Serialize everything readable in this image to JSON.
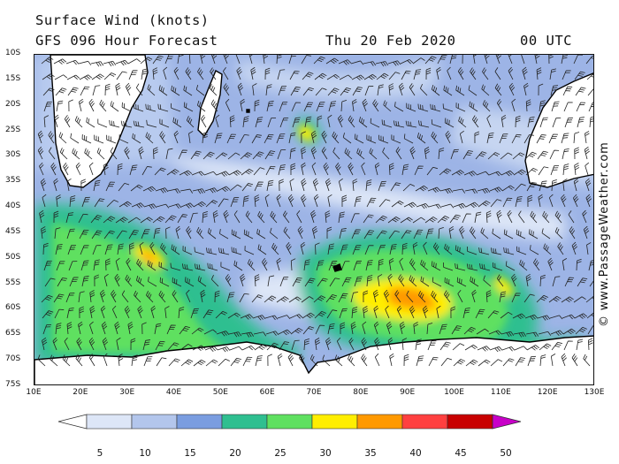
{
  "header": {
    "title": "Surface Wind (knots)",
    "forecast": "GFS 096 Hour Forecast",
    "valid_date": "Thu 20 Feb 2020",
    "valid_time": "00 UTC"
  },
  "map": {
    "lat_ticks": [
      "10S",
      "15S",
      "20S",
      "25S",
      "30S",
      "35S",
      "40S",
      "45S",
      "50S",
      "55S",
      "60S",
      "65S",
      "70S",
      "75S"
    ],
    "lon_ticks": [
      "10E",
      "20E",
      "30E",
      "40E",
      "50E",
      "60E",
      "70E",
      "80E",
      "90E",
      "100E",
      "110E",
      "120E",
      "130E"
    ],
    "land_color": "#ffffff",
    "coast_color": "#000000"
  },
  "legend": {
    "unit": "knots",
    "labels": [
      "5",
      "10",
      "15",
      "20",
      "25",
      "30",
      "35",
      "40",
      "45",
      "50"
    ],
    "colors": [
      "#ffffff",
      "#dde6f7",
      "#b3c6ec",
      "#7a9de0",
      "#2fbf90",
      "#5fe060",
      "#ffee00",
      "#ff9900",
      "#ff4040",
      "#c80000",
      "#c800c8"
    ]
  },
  "copyright": "© www.PassageWeather.com"
}
